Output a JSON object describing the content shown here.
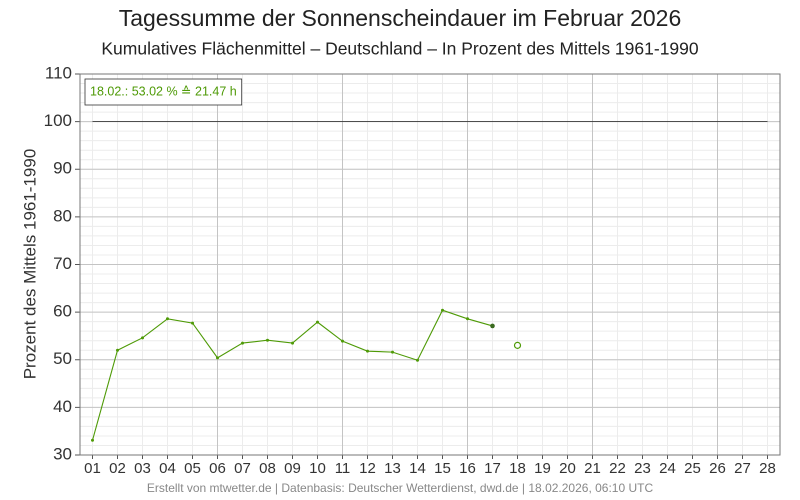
{
  "chart_data": {
    "type": "line",
    "title": "Tagessumme der Sonnenscheindauer im Februar 2026",
    "subtitle": "Kumulatives Flächenmittel – Deutschland – In Prozent des Mittels 1961-1990",
    "ylabel": "Prozent des Mittels 1961-1990",
    "annotation": "18.02.: 53.02 % ≙ 21.47 h",
    "footer": "Erstellt von mtwetter.de | Datenbasis: Deutscher Wetterdienst, dwd.de | 18.02.2026, 06:10 UTC",
    "categories": [
      "01",
      "02",
      "03",
      "04",
      "05",
      "06",
      "07",
      "08",
      "09",
      "10",
      "11",
      "12",
      "13",
      "14",
      "15",
      "16",
      "17",
      "18",
      "19",
      "20",
      "21",
      "22",
      "23",
      "24",
      "25",
      "26",
      "27",
      "28"
    ],
    "values": [
      33.1,
      52.0,
      54.6,
      58.6,
      57.7,
      50.4,
      53.5,
      54.1,
      53.5,
      57.9,
      53.9,
      51.8,
      51.6,
      49.9,
      60.4,
      58.6,
      57.1,
      null,
      null,
      null,
      null,
      null,
      null,
      null,
      null,
      null,
      null,
      null
    ],
    "current_values": [
      null,
      null,
      null,
      null,
      null,
      null,
      null,
      null,
      null,
      null,
      null,
      null,
      null,
      null,
      null,
      null,
      null,
      53.02,
      null,
      null,
      null,
      null,
      null,
      null,
      null,
      null,
      null,
      null
    ],
    "color": "#4e9a06",
    "reference": 100,
    "ylim": [
      30,
      110
    ],
    "yticks": [
      30,
      40,
      50,
      60,
      70,
      80,
      90,
      100,
      110
    ],
    "yminor_step": 2,
    "x_major_every": 5,
    "grid": true
  }
}
